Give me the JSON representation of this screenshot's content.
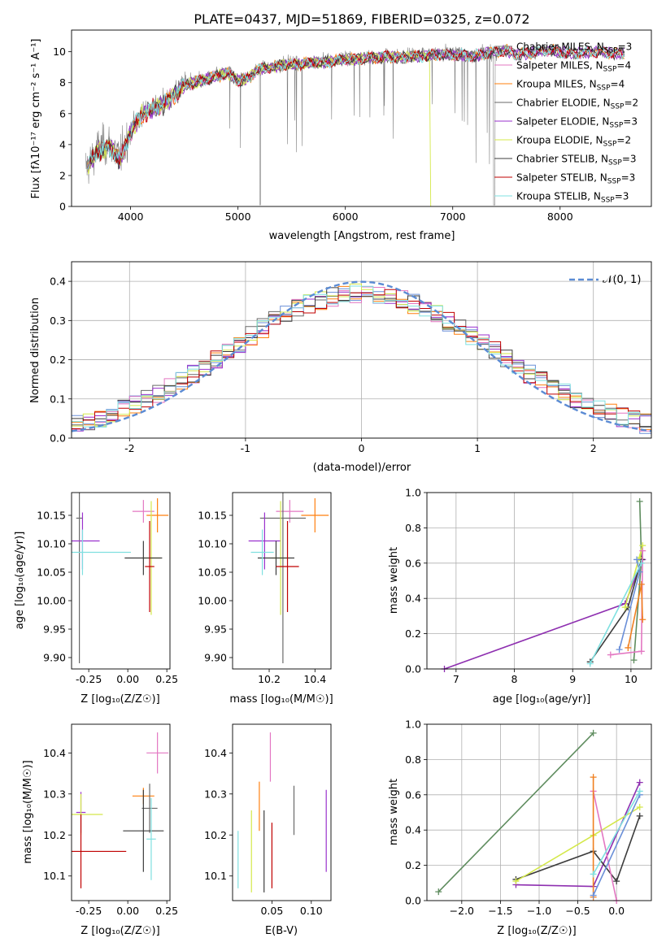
{
  "title": "PLATE=0437, MJD=51869, FIBERID=0325, z=0.072",
  "colors": [
    "#7f7f7f",
    "#e377c2",
    "#ff7f0e",
    "#6a6a6a",
    "#9a32cd",
    "#d4e84a",
    "#3c3c3c",
    "#c00000",
    "#7fe0e0"
  ],
  "chart_data": [
    {
      "id": "spectrum",
      "type": "line",
      "title": "PLATE=0437, MJD=51869, FIBERID=0325, z=0.072",
      "xlabel": "wavelength [Angstrom, rest frame]",
      "ylabel": "Flux [fλ10⁻¹⁷ erg cm⁻² s⁻¹ A⁻¹]",
      "xlim": [
        3450,
        8850
      ],
      "ylim": [
        0,
        11.4
      ],
      "xticks": [
        4000,
        5000,
        6000,
        7000,
        8000
      ],
      "yticks": [
        0,
        2,
        4,
        6,
        8,
        10
      ],
      "grid": false,
      "legend_position": "right",
      "legend": [
        "Chabrier MILES, N_SSP=3",
        "Salpeter MILES, N_SSP=4",
        "Kroupa MILES, N_SSP=4",
        "Chabrier ELODIE, N_SSP=2",
        "Salpeter ELODIE, N_SSP=3",
        "Kroupa ELODIE, N_SSP=2",
        "Chabrier STELIB, N_SSP=3",
        "Salpeter STELIB, N_SSP=3",
        "Kroupa STELIB, N_SSP=3"
      ],
      "data_continuum": {
        "x": [
          3600,
          3700,
          3800,
          3900,
          4000,
          4100,
          4200,
          4300,
          4400,
          4500,
          4600,
          4700,
          4800,
          4900,
          5000,
          5100,
          5200,
          5300,
          5400,
          5500,
          5600,
          5700,
          5800,
          5900,
          6000,
          6100,
          6200,
          6300,
          6400,
          6500,
          6600,
          6700,
          6800,
          6900,
          7000,
          7100,
          7200,
          7300,
          7400
        ],
        "y": [
          2.6,
          3.8,
          4.0,
          3.2,
          4.9,
          6.0,
          6.4,
          6.7,
          7.3,
          7.9,
          8.1,
          8.3,
          8.5,
          8.7,
          8.3,
          8.4,
          8.9,
          9.0,
          9.2,
          9.3,
          9.3,
          9.4,
          9.5,
          9.5,
          9.6,
          9.6,
          9.7,
          9.7,
          9.8,
          9.7,
          9.9,
          9.8,
          9.9,
          9.9,
          9.9,
          9.9,
          9.8,
          9.9,
          9.9
        ]
      },
      "model_continuum": {
        "x": [
          3600,
          3700,
          3800,
          3900,
          4000,
          4100,
          4200,
          4300,
          4400,
          4500,
          4600,
          4700,
          4800,
          4900,
          5000,
          5100,
          5200,
          5300,
          5400,
          5500,
          5600,
          5700,
          5800,
          5900,
          6000,
          6100,
          6200,
          6300,
          6400,
          6500,
          6600,
          6700,
          6800,
          6900,
          7000,
          7100,
          7200,
          7300,
          7400,
          7500,
          7600,
          7700,
          7800,
          7900,
          8000,
          8100,
          8200,
          8300,
          8400,
          8500,
          8600
        ],
        "y": [
          2.6,
          3.6,
          3.9,
          3.0,
          4.8,
          5.9,
          6.3,
          6.6,
          7.2,
          7.8,
          8.0,
          8.2,
          8.4,
          8.6,
          8.1,
          8.3,
          8.9,
          9.0,
          9.1,
          9.2,
          9.2,
          9.3,
          9.3,
          9.4,
          9.5,
          9.5,
          9.6,
          9.6,
          9.7,
          9.6,
          9.7,
          9.7,
          9.8,
          9.8,
          9.8,
          9.8,
          9.7,
          9.9,
          10.0,
          10.1,
          9.8,
          9.9,
          10.0,
          10.1,
          10.0,
          9.9,
          9.9,
          10.0,
          10.0,
          9.9,
          9.9
        ]
      }
    },
    {
      "id": "residuals",
      "type": "histogram",
      "xlabel": "(data-model)/error",
      "ylabel": "Normed distribution",
      "xlim": [
        -2.5,
        2.5
      ],
      "ylim": [
        0,
        0.45
      ],
      "xticks": [
        -2,
        -1,
        0,
        1,
        2
      ],
      "yticks": [
        0.0,
        0.1,
        0.2,
        0.3,
        0.4
      ],
      "grid": true,
      "legend": [
        "𝒩(0, 1)"
      ],
      "legend_position": "top-right",
      "reference_curve": "standard normal"
    },
    {
      "id": "age-vs-Z",
      "type": "errorbar",
      "xlabel": "Z [log₁₀(Z/Z☉)]",
      "ylabel": "age  [log₁₀(age/yr)]",
      "xlim": [
        -0.36,
        0.27
      ],
      "ylim": [
        9.88,
        10.19
      ],
      "xticks": [
        -0.25,
        0.0,
        0.25
      ],
      "yticks": [
        9.9,
        9.95,
        10.0,
        10.05,
        10.1,
        10.15
      ],
      "points": [
        {
          "x": 0.1,
          "y": 10.157,
          "xerr": 0.07,
          "yerr": 0.02
        },
        {
          "x": 0.19,
          "y": 10.15,
          "xerr": 0.07,
          "yerr": 0.03
        },
        {
          "x": -0.31,
          "y": 10.145,
          "xerr": 0.02,
          "yerr": 0.255
        },
        {
          "x": -0.29,
          "y": 10.105,
          "xerr": 0.11,
          "yerr": 0.05
        },
        {
          "x": 0.15,
          "y": 10.075,
          "xerr": 0.06,
          "yerr": 0.1
        },
        {
          "x": 0.1,
          "y": 10.075,
          "xerr": 0.12,
          "yerr": 0.03
        },
        {
          "x": 0.14,
          "y": 10.06,
          "xerr": 0.03,
          "yerr": 0.08
        },
        {
          "x": -0.29,
          "y": 10.085,
          "xerr": 0.31,
          "yerr": 0.04
        }
      ]
    },
    {
      "id": "age-vs-mass",
      "type": "errorbar",
      "xlabel": "mass [log₁₀(M/M☉)]",
      "ylabel": "",
      "xlim": [
        10.04,
        10.47
      ],
      "ylim": [
        9.88,
        10.19
      ],
      "xticks": [
        10.2,
        10.4
      ],
      "yticks": [
        9.9,
        9.95,
        10.0,
        10.05,
        10.1,
        10.15
      ],
      "points": [
        {
          "x": 10.29,
          "y": 10.157,
          "xerr": 0.06,
          "yerr": 0.02
        },
        {
          "x": 10.4,
          "y": 10.15,
          "xerr": 0.06,
          "yerr": 0.03
        },
        {
          "x": 10.26,
          "y": 10.145,
          "xerr": 0.1,
          "yerr": 0.255
        },
        {
          "x": 10.18,
          "y": 10.105,
          "xerr": 0.07,
          "yerr": 0.05
        },
        {
          "x": 10.25,
          "y": 10.075,
          "xerr": 0.04,
          "yerr": 0.1
        },
        {
          "x": 10.23,
          "y": 10.075,
          "xerr": 0.08,
          "yerr": 0.03
        },
        {
          "x": 10.28,
          "y": 10.06,
          "xerr": 0.05,
          "yerr": 0.08
        },
        {
          "x": 10.17,
          "y": 10.085,
          "xerr": 0.05,
          "yerr": 0.04
        }
      ]
    },
    {
      "id": "massweight-vs-age",
      "type": "line",
      "xlabel": "age  [log₁₀(age/yr)]",
      "ylabel": "mass weight",
      "xlim": [
        6.5,
        10.35
      ],
      "ylim": [
        0,
        1
      ],
      "xticks": [
        7,
        8,
        9,
        10
      ],
      "yticks": [
        0.0,
        0.2,
        0.4,
        0.6,
        0.8,
        1.0
      ],
      "grid": true,
      "series": [
        {
          "x": [
            10.15,
            10.18,
            10.05
          ],
          "y": [
            0.95,
            0.62,
            0.05
          ]
        },
        {
          "x": [
            6.8,
            9.9,
            10.2
          ],
          "y": [
            0.0,
            0.37,
            0.62
          ]
        },
        {
          "x": [
            9.3,
            9.95,
            10.18
          ],
          "y": [
            0.04,
            0.35,
            0.62
          ]
        },
        {
          "x": [
            9.9,
            10.2,
            10.15
          ],
          "y": [
            0.35,
            0.7,
            0.63
          ]
        },
        {
          "x": [
            9.65,
            10.18,
            10.2
          ],
          "y": [
            0.08,
            0.1,
            0.67
          ]
        },
        {
          "x": [
            9.95,
            10.18,
            10.2
          ],
          "y": [
            0.12,
            0.48,
            0.28
          ]
        },
        {
          "x": [
            9.8,
            10.15,
            10.1
          ],
          "y": [
            0.11,
            0.55,
            0.62
          ]
        },
        {
          "x": [
            9.3,
            10.18
          ],
          "y": [
            0.03,
            0.6
          ]
        }
      ]
    },
    {
      "id": "mass-vs-Z",
      "type": "errorbar",
      "xlabel": "Z [log₁₀(Z/Z☉)]",
      "ylabel": "mass [log₁₀(M/M☉)]",
      "xlim": [
        -0.36,
        0.27
      ],
      "ylim": [
        10.04,
        10.47
      ],
      "xticks": [
        -0.25,
        0.0,
        0.25
      ],
      "yticks": [
        10.1,
        10.2,
        10.3,
        10.4
      ],
      "points": [
        {
          "x": 0.19,
          "y": 10.4,
          "xerr": 0.07,
          "yerr": 0.05
        },
        {
          "x": 0.1,
          "y": 10.295,
          "xerr": 0.07,
          "yerr": 0.02
        },
        {
          "x": 0.14,
          "y": 10.265,
          "xerr": 0.05,
          "yerr": 0.06
        },
        {
          "x": -0.3,
          "y": 10.255,
          "xerr": 0.03,
          "yerr": 0.05
        },
        {
          "x": -0.3,
          "y": 10.25,
          "xerr": 0.14,
          "yerr": 0.05
        },
        {
          "x": 0.1,
          "y": 10.21,
          "xerr": 0.13,
          "yerr": 0.1
        },
        {
          "x": -0.3,
          "y": 10.16,
          "xerr": 0.29,
          "yerr": 0.09
        },
        {
          "x": 0.15,
          "y": 10.19,
          "xerr": 0.03,
          "yerr": 0.1
        }
      ]
    },
    {
      "id": "mass-vs-EBV",
      "type": "errorbar",
      "xlabel": "E(B-V)",
      "ylabel": "",
      "xlim": [
        0.0,
        0.125
      ],
      "ylim": [
        10.04,
        10.47
      ],
      "xticks": [
        0.05,
        0.1
      ],
      "yticks": [
        10.1,
        10.2,
        10.3,
        10.4
      ],
      "points": [
        {
          "x": 0.048,
          "y": 10.39,
          "xerr": 0.0,
          "yerr": 0.06
        },
        {
          "x": 0.034,
          "y": 10.27,
          "xerr": 0.0,
          "yerr": 0.06
        },
        {
          "x": 0.078,
          "y": 10.26,
          "xerr": 0.0,
          "yerr": 0.06
        },
        {
          "x": 0.119,
          "y": 10.21,
          "xerr": 0.0,
          "yerr": 0.1
        },
        {
          "x": 0.024,
          "y": 10.16,
          "xerr": 0.0,
          "yerr": 0.1
        },
        {
          "x": 0.04,
          "y": 10.16,
          "xerr": 0.0,
          "yerr": 0.1
        },
        {
          "x": 0.05,
          "y": 10.15,
          "xerr": 0.0,
          "yerr": 0.08
        },
        {
          "x": 0.007,
          "y": 10.14,
          "xerr": 0.0,
          "yerr": 0.07
        }
      ]
    },
    {
      "id": "massweight-vs-Z",
      "type": "line",
      "xlabel": "Z [log₁₀(Z/Z☉)]",
      "ylabel": "mass weight",
      "xlim": [
        -2.45,
        0.45
      ],
      "ylim": [
        0,
        1
      ],
      "xticks": [
        -2.0,
        -1.5,
        -1.0,
        -0.5,
        0.0
      ],
      "yticks": [
        0.0,
        0.2,
        0.4,
        0.6,
        0.8,
        1.0
      ],
      "grid": true,
      "series": [
        {
          "x": [
            -2.3,
            -0.3
          ],
          "y": [
            0.05,
            0.95
          ]
        },
        {
          "x": [
            -1.3,
            -0.3,
            0.3
          ],
          "y": [
            0.09,
            0.08,
            0.67
          ]
        },
        {
          "x": [
            -1.3,
            -0.3,
            0.0,
            0.3
          ],
          "y": [
            0.12,
            0.28,
            0.11,
            0.48
          ]
        },
        {
          "x": [
            -1.3,
            -0.3,
            0.3
          ],
          "y": [
            0.11,
            0.37,
            0.53
          ]
        },
        {
          "x": [
            -0.3,
            0.0
          ],
          "y": [
            0.62,
            0.0
          ]
        },
        {
          "x": [
            -0.3,
            -0.3
          ],
          "y": [
            0.7,
            0.02
          ]
        },
        {
          "x": [
            -0.3,
            0.3
          ],
          "y": [
            0.03,
            0.6
          ]
        },
        {
          "x": [
            -0.3,
            0.3
          ],
          "y": [
            0.15,
            0.62
          ]
        }
      ]
    }
  ]
}
